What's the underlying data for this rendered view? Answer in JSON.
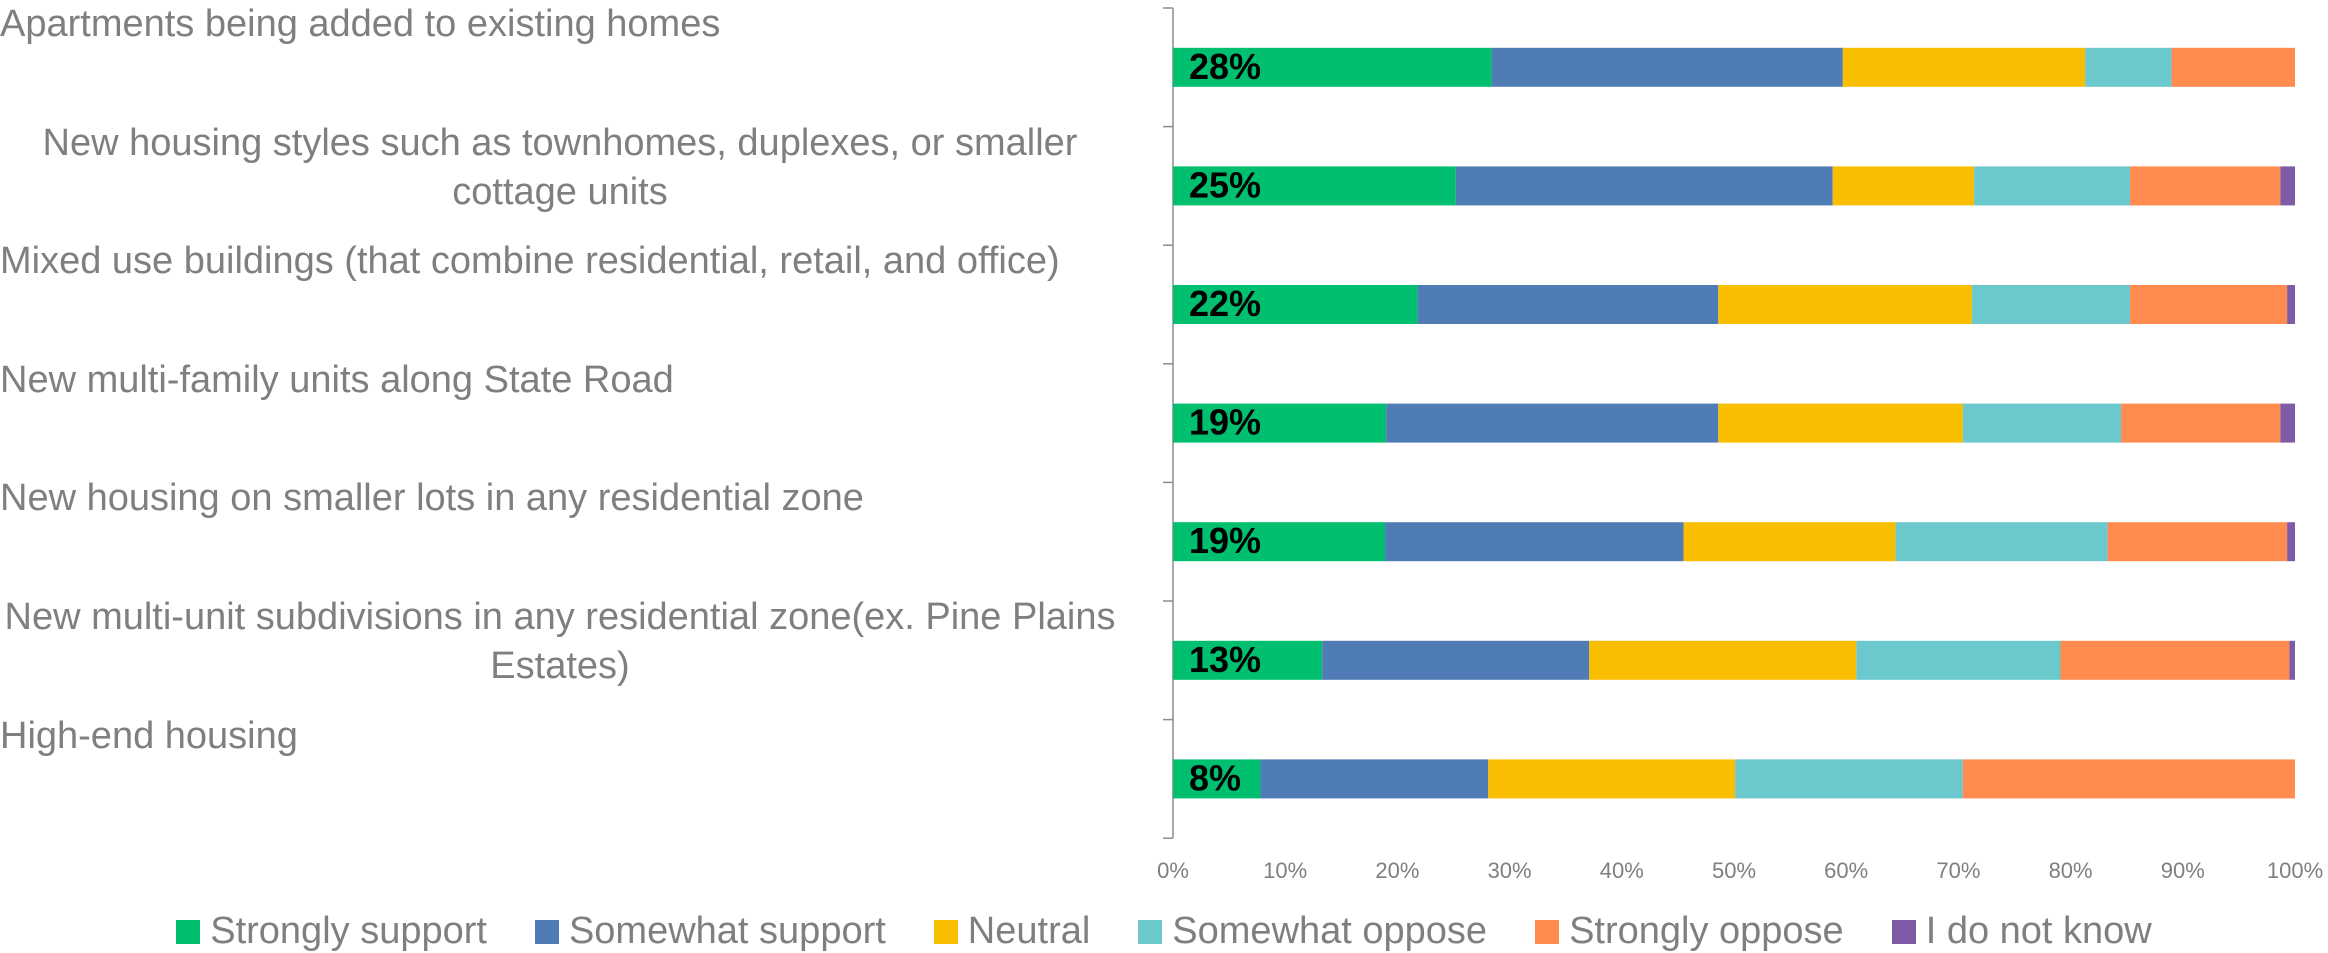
{
  "chart_data": {
    "type": "stacked_barh",
    "categories": [
      "Apartments being added to existing homes",
      "New housing styles such as townhomes, duplexes, or smaller cottage units",
      "Mixed use buildings (that combine residential, retail, and office)",
      "New multi-family units along State Road",
      "New housing on smaller lots in any residential zone",
      "New multi-unit subdivisions in any residential zone(ex. Pine Plains Estates)",
      "High-end housing"
    ],
    "series": [
      {
        "name": "Strongly support",
        "color": "#00bf6f",
        "values": [
          28.4,
          25.2,
          21.8,
          19.0,
          18.9,
          13.3,
          7.8
        ],
        "value_labels": [
          "28%",
          "25%",
          "22%",
          "19%",
          "19%",
          "13%",
          "8%"
        ]
      },
      {
        "name": "Somewhat support",
        "color": "#507cb6",
        "values": [
          31.3,
          33.6,
          26.8,
          29.6,
          26.6,
          23.8,
          20.3
        ]
      },
      {
        "name": "Neutral",
        "color": "#f9be00",
        "values": [
          21.6,
          12.6,
          22.6,
          21.8,
          18.9,
          23.8,
          22.0
        ]
      },
      {
        "name": "Somewhat oppose",
        "color": "#6bc8cd",
        "values": [
          7.7,
          13.9,
          14.1,
          14.1,
          18.9,
          18.2,
          20.3
        ]
      },
      {
        "name": "Strongly oppose",
        "color": "#ff8b4f",
        "values": [
          11.0,
          13.4,
          14.0,
          14.2,
          16.0,
          20.4,
          29.6
        ]
      },
      {
        "name": "I do not know",
        "color": "#7d5ba6",
        "values": [
          0,
          1.3,
          0.7,
          1.3,
          0.7,
          0.5,
          0
        ]
      }
    ],
    "xlim": [
      0,
      100
    ],
    "xticks": [
      {
        "value": 0,
        "label": "0%"
      },
      {
        "value": 10,
        "label": "10%"
      },
      {
        "value": 20,
        "label": "20%"
      },
      {
        "value": 30,
        "label": "30%"
      },
      {
        "value": 40,
        "label": "40%"
      },
      {
        "value": 50,
        "label": "50%"
      },
      {
        "value": 60,
        "label": "60%"
      },
      {
        "value": 70,
        "label": "70%"
      },
      {
        "value": 80,
        "label": "80%"
      },
      {
        "value": 90,
        "label": "90%"
      },
      {
        "value": 100,
        "label": "100%"
      }
    ],
    "legend": "bottom"
  }
}
